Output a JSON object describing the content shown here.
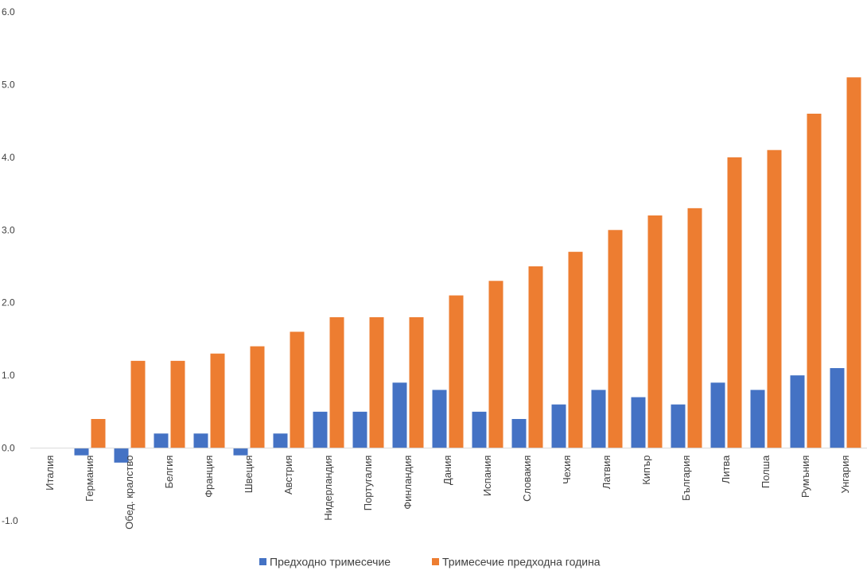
{
  "chart_data": {
    "type": "bar",
    "title": "",
    "xlabel": "",
    "ylabel": "",
    "ylim": [
      -1.0,
      6.0
    ],
    "yticks": [
      "6.0",
      "5.0",
      "4.0",
      "3.0",
      "2.0",
      "1.0",
      "0.0",
      "-1.0"
    ],
    "ytick_values": [
      6.0,
      5.0,
      4.0,
      3.0,
      2.0,
      1.0,
      0.0,
      -1.0
    ],
    "grid": false,
    "legend": "bottom-center",
    "categories": [
      "Италия",
      "Германия",
      "Обед. кралство",
      "Белгия",
      "Франция",
      "Швеция",
      "Австрия",
      "Нидерландия",
      "Португалия",
      "Финландия",
      "Дания",
      "Испания",
      "Словакия",
      "Чехия",
      "Латвия",
      "Кипър",
      "България",
      "Литва",
      "Полша",
      "Румъния",
      "Унгария"
    ],
    "series": [
      {
        "name": "Предходно тримесечие",
        "color": "#4472C4",
        "values": [
          0.0,
          -0.1,
          -0.2,
          0.2,
          0.2,
          -0.1,
          0.2,
          0.5,
          0.5,
          0.9,
          0.8,
          0.5,
          0.4,
          0.6,
          0.8,
          0.7,
          0.6,
          0.9,
          0.8,
          1.0,
          1.1
        ]
      },
      {
        "name": "Тримесечие предходна година",
        "color": "#ED7D31",
        "values": [
          0.0,
          0.4,
          1.2,
          1.2,
          1.3,
          1.4,
          1.6,
          1.8,
          1.8,
          1.8,
          2.1,
          2.3,
          2.5,
          2.7,
          3.0,
          3.2,
          3.3,
          4.0,
          4.1,
          4.6,
          5.1
        ]
      }
    ]
  }
}
